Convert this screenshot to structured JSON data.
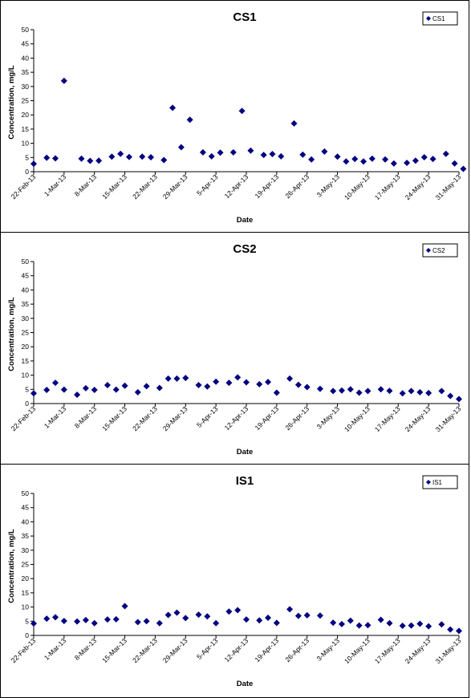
{
  "chart_data": [
    {
      "type": "scatter",
      "title": "CS1",
      "xlabel": "Date",
      "ylabel": "Concentration, mg/L",
      "ylim": [
        0,
        50
      ],
      "yticks": [
        "0",
        "5",
        "10",
        "15",
        "20",
        "25",
        "30",
        "35",
        "40",
        "45",
        "50"
      ],
      "xticks": [
        "22-Feb-13",
        "1-Mar-13",
        "8-Mar-13",
        "15-Mar-13",
        "22-Mar-13",
        "29-Mar-13",
        "5-Apr-13",
        "12-Apr-13",
        "19-Apr-13",
        "26-Apr-13",
        "3-May-13",
        "10-May-13",
        "17-May-13",
        "24-May-13",
        "31-May-13"
      ],
      "xlim": [
        "2013-02-22",
        "2013-05-31"
      ],
      "legend": "top-right",
      "color": "#000080",
      "series": [
        {
          "name": "CS1",
          "points": [
            [
              "2013-02-22",
              2.8
            ],
            [
              "2013-02-25",
              4.9
            ],
            [
              "2013-02-27",
              4.7
            ],
            [
              "2013-03-01",
              32
            ],
            [
              "2013-03-05",
              4.6
            ],
            [
              "2013-03-07",
              3.8
            ],
            [
              "2013-03-09",
              3.9
            ],
            [
              "2013-03-12",
              5.3
            ],
            [
              "2013-03-14",
              6.3
            ],
            [
              "2013-03-16",
              5.2
            ],
            [
              "2013-03-19",
              5.3
            ],
            [
              "2013-03-21",
              5.1
            ],
            [
              "2013-03-24",
              4.1
            ],
            [
              "2013-03-26",
              22.5
            ],
            [
              "2013-03-28",
              8.6
            ],
            [
              "2013-03-30",
              18.3
            ],
            [
              "2013-04-02",
              6.8
            ],
            [
              "2013-04-04",
              5.4
            ],
            [
              "2013-04-06",
              6.7
            ],
            [
              "2013-04-09",
              6.8
            ],
            [
              "2013-04-11",
              21.4
            ],
            [
              "2013-04-13",
              7.4
            ],
            [
              "2013-04-16",
              5.9
            ],
            [
              "2013-04-18",
              6.2
            ],
            [
              "2013-04-20",
              5.4
            ],
            [
              "2013-04-23",
              17
            ],
            [
              "2013-04-25",
              6
            ],
            [
              "2013-04-27",
              4.3
            ],
            [
              "2013-04-30",
              7.1
            ],
            [
              "2013-05-03",
              5.3
            ],
            [
              "2013-05-05",
              3.6
            ],
            [
              "2013-05-07",
              4.5
            ],
            [
              "2013-05-09",
              3.6
            ],
            [
              "2013-05-11",
              4.6
            ],
            [
              "2013-05-14",
              4.3
            ],
            [
              "2013-05-16",
              2.9
            ],
            [
              "2013-05-19",
              3.1
            ],
            [
              "2013-05-21",
              3.9
            ],
            [
              "2013-05-23",
              5.1
            ],
            [
              "2013-05-25",
              4.5
            ],
            [
              "2013-05-28",
              6.3
            ],
            [
              "2013-05-30",
              2.9
            ],
            [
              "2013-06-01",
              1.0
            ]
          ]
        }
      ]
    },
    {
      "type": "scatter",
      "title": "CS2",
      "xlabel": "Date",
      "ylabel": "Concentration, mg/L",
      "ylim": [
        0,
        50
      ],
      "yticks": [
        "0",
        "5",
        "10",
        "15",
        "20",
        "25",
        "30",
        "35",
        "40",
        "45",
        "50"
      ],
      "xticks": [
        "22-Feb-13",
        "1-Mar-13",
        "8-Mar-13",
        "15-Mar-13",
        "22-Mar-13",
        "29-Mar-13",
        "5-Apr-13",
        "12-Apr-13",
        "19-Apr-13",
        "26-Apr-13",
        "3-May-13",
        "10-May-13",
        "17-May-13",
        "24-May-13",
        "31-May-13"
      ],
      "xlim": [
        "2013-02-22",
        "2013-05-31"
      ],
      "legend": "top-right",
      "color": "#000080",
      "series": [
        {
          "name": "CS2",
          "points": [
            [
              "2013-02-22",
              3.6
            ],
            [
              "2013-02-25",
              4.8
            ],
            [
              "2013-02-27",
              7.3
            ],
            [
              "2013-03-01",
              4.9
            ],
            [
              "2013-03-04",
              3.1
            ],
            [
              "2013-03-06",
              5.4
            ],
            [
              "2013-03-08",
              4.8
            ],
            [
              "2013-03-11",
              6.5
            ],
            [
              "2013-03-13",
              4.9
            ],
            [
              "2013-03-15",
              6.3
            ],
            [
              "2013-03-18",
              4.0
            ],
            [
              "2013-03-20",
              6.1
            ],
            [
              "2013-03-23",
              5.5
            ],
            [
              "2013-03-25",
              8.8
            ],
            [
              "2013-03-27",
              8.8
            ],
            [
              "2013-03-29",
              9.0
            ],
            [
              "2013-04-01",
              6.5
            ],
            [
              "2013-04-03",
              6.0
            ],
            [
              "2013-04-05",
              7.7
            ],
            [
              "2013-04-08",
              7.3
            ],
            [
              "2013-04-10",
              9.2
            ],
            [
              "2013-04-12",
              7.5
            ],
            [
              "2013-04-15",
              6.8
            ],
            [
              "2013-04-17",
              7.6
            ],
            [
              "2013-04-19",
              3.8
            ],
            [
              "2013-04-22",
              8.8
            ],
            [
              "2013-04-24",
              6.6
            ],
            [
              "2013-04-26",
              5.8
            ],
            [
              "2013-04-29",
              5.2
            ],
            [
              "2013-05-02",
              4.4
            ],
            [
              "2013-05-04",
              4.6
            ],
            [
              "2013-05-06",
              5.0
            ],
            [
              "2013-05-08",
              3.8
            ],
            [
              "2013-05-10",
              4.4
            ],
            [
              "2013-05-13",
              5.0
            ],
            [
              "2013-05-15",
              4.5
            ],
            [
              "2013-05-18",
              3.6
            ],
            [
              "2013-05-20",
              4.4
            ],
            [
              "2013-05-22",
              4.0
            ],
            [
              "2013-05-24",
              3.7
            ],
            [
              "2013-05-27",
              4.4
            ],
            [
              "2013-05-29",
              2.7
            ],
            [
              "2013-05-31",
              1.6
            ]
          ]
        }
      ]
    },
    {
      "type": "scatter",
      "title": "IS1",
      "xlabel": "Date",
      "ylabel": "Concentration, mg/L",
      "ylim": [
        0,
        50
      ],
      "yticks": [
        "0",
        "5",
        "10",
        "15",
        "20",
        "25",
        "30",
        "35",
        "40",
        "45",
        "50"
      ],
      "xticks": [
        "22-Feb-13",
        "1-Mar-13",
        "8-Mar-13",
        "15-Mar-13",
        "22-Mar-13",
        "29-Mar-13",
        "5-Apr-13",
        "12-Apr-13",
        "19-Apr-13",
        "26-Apr-13",
        "3-May-13",
        "10-May-13",
        "17-May-13",
        "24-May-13",
        "31-May-13"
      ],
      "xlim": [
        "2013-02-22",
        "2013-05-31"
      ],
      "legend": "top-right",
      "color": "#000080",
      "series": [
        {
          "name": "IS1",
          "points": [
            [
              "2013-02-22",
              4.2
            ],
            [
              "2013-02-25",
              5.9
            ],
            [
              "2013-02-27",
              6.4
            ],
            [
              "2013-03-01",
              5.1
            ],
            [
              "2013-03-04",
              4.9
            ],
            [
              "2013-03-06",
              5.4
            ],
            [
              "2013-03-08",
              4.3
            ],
            [
              "2013-03-11",
              5.6
            ],
            [
              "2013-03-13",
              5.7
            ],
            [
              "2013-03-15",
              10.3
            ],
            [
              "2013-03-18",
              4.7
            ],
            [
              "2013-03-20",
              5.0
            ],
            [
              "2013-03-23",
              4.3
            ],
            [
              "2013-03-25",
              7.2
            ],
            [
              "2013-03-27",
              8.0
            ],
            [
              "2013-03-29",
              6.1
            ],
            [
              "2013-04-01",
              7.3
            ],
            [
              "2013-04-03",
              6.7
            ],
            [
              "2013-04-05",
              4.3
            ],
            [
              "2013-04-08",
              8.4
            ],
            [
              "2013-04-10",
              8.9
            ],
            [
              "2013-04-12",
              5.6
            ],
            [
              "2013-04-15",
              5.3
            ],
            [
              "2013-04-17",
              6.2
            ],
            [
              "2013-04-19",
              4.4
            ],
            [
              "2013-04-22",
              9.2
            ],
            [
              "2013-04-24",
              6.9
            ],
            [
              "2013-04-26",
              7.1
            ],
            [
              "2013-04-29",
              7.0
            ],
            [
              "2013-05-02",
              4.5
            ],
            [
              "2013-05-04",
              4.0
            ],
            [
              "2013-05-06",
              5.2
            ],
            [
              "2013-05-08",
              3.5
            ],
            [
              "2013-05-10",
              3.6
            ],
            [
              "2013-05-13",
              5.5
            ],
            [
              "2013-05-15",
              4.3
            ],
            [
              "2013-05-18",
              3.4
            ],
            [
              "2013-05-20",
              3.5
            ],
            [
              "2013-05-22",
              4.1
            ],
            [
              "2013-05-24",
              3.2
            ],
            [
              "2013-05-27",
              3.9
            ],
            [
              "2013-05-29",
              2.1
            ],
            [
              "2013-05-31",
              1.6
            ]
          ]
        }
      ]
    }
  ]
}
